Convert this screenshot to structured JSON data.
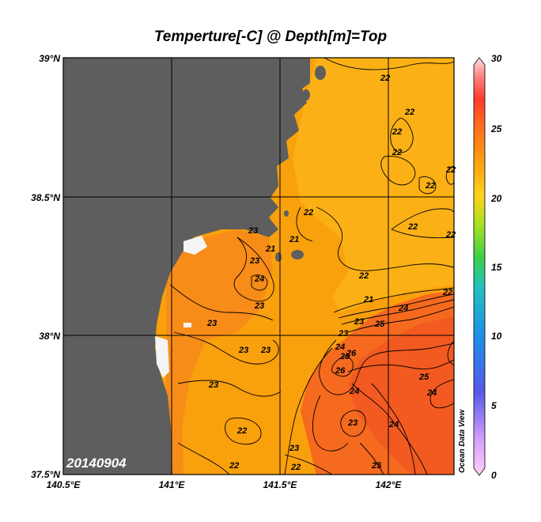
{
  "title": "Temperture[-C] @ Depth[m]=Top",
  "date_label": "20140904",
  "credit": "Ocean Data View",
  "axes": {
    "x_ticks": [
      "140.5°E",
      "141°E",
      "141.5°E",
      "142°E"
    ],
    "y_ticks": [
      "39°N",
      "38.5°N",
      "38°N",
      "37.5°N"
    ]
  },
  "colorbar": {
    "ticks": [
      "30",
      "25",
      "20",
      "15",
      "10",
      "5",
      "0"
    ],
    "range": [
      0,
      30
    ],
    "colors": [
      "#ff7fd8",
      "#c080ff",
      "#4a4ae0",
      "#1e8ee8",
      "#22c0c0",
      "#3ad04a",
      "#a8e020",
      "#ffd21a",
      "#ffa010",
      "#ff6020",
      "#ff3a2a",
      "#ff8a8a",
      "#ffe0e0"
    ]
  },
  "colors": {
    "land": "#5e5e5e",
    "ocean": "#f9a00d",
    "warm": "#f56a1f",
    "cool": "#fbb417",
    "missing": "#f4f4f4"
  },
  "contour_labels": [
    "22",
    "22",
    "22",
    "22",
    "22",
    "22",
    "22",
    "22",
    "22",
    "21",
    "22",
    "23",
    "23",
    "24",
    "23",
    "21",
    "22",
    "21",
    "23",
    "23",
    "24",
    "25",
    "24",
    "25",
    "26",
    "26",
    "23",
    "23",
    "23",
    "24",
    "25",
    "24",
    "22",
    "23",
    "23",
    "24",
    "23",
    "22",
    "22",
    "25"
  ]
}
